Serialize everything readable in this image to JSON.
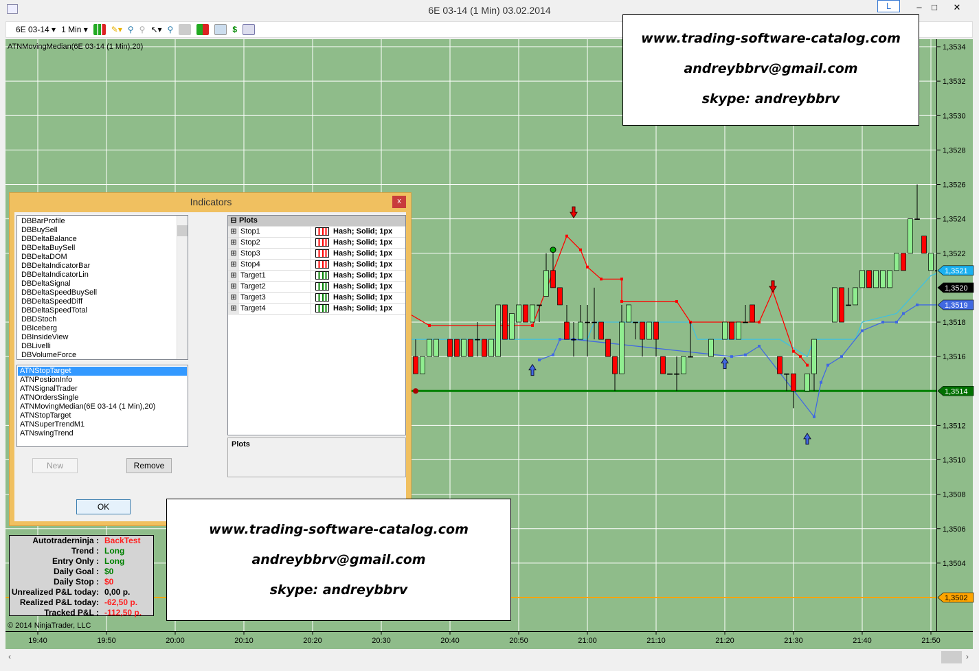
{
  "window": {
    "title": "6E 03-14 (1 Min)  03.02.2014",
    "badge": "L",
    "minimize": "‒",
    "maximize": "□",
    "close": "✕",
    "icon": "chart-icon"
  },
  "toolbar": {
    "instrument": "6E 03-14",
    "interval": "1 Min",
    "icons": [
      "bar-style-icon",
      "pencil-icon",
      "zoom-in-icon",
      "zoom-out-icon",
      "cursor-icon",
      "magnify-icon",
      "data-box-icon",
      "indicators-icon",
      "strategies-icon",
      "dollar-icon",
      "properties-icon"
    ]
  },
  "chart": {
    "indicator_label": "ATNMovingMedian(6E 03-14 (1 Min),20)",
    "copyright": "© 2014 NinjaTrader, LLC",
    "colors": {
      "background": "#8fbc8a",
      "up": "#90ee90",
      "down": "#ff0000",
      "stop": "#ff0000",
      "median": "#40c0e0",
      "target": "#4169e1",
      "level": "#008000",
      "orange": "#ffa500"
    }
  },
  "chart_data": {
    "type": "candlestick",
    "y_ticks": [
      "1,3534",
      "1,3532",
      "1,3530",
      "1,3528",
      "1,3526",
      "1,3524",
      "1,3522",
      "1,3518",
      "1,3516",
      "1,3512",
      "1,3510",
      "1,3508",
      "1,3506",
      "1,3504"
    ],
    "ylim": [
      1.35005,
      1.35365
    ],
    "x_ticks": [
      "19:40",
      "19:50",
      "20:00",
      "20:10",
      "20:20",
      "20:30",
      "20:40",
      "20:50",
      "21:00",
      "21:10",
      "21:20",
      "21:30",
      "21:40",
      "21:50"
    ],
    "candles": [
      [
        "20:35",
        1.3516,
        1.3517,
        1.3515,
        1.3515
      ],
      [
        "20:36",
        1.3515,
        1.3516,
        1.3515,
        1.3516
      ],
      [
        "20:37",
        1.3516,
        1.3517,
        1.3516,
        1.3517
      ],
      [
        "20:38",
        1.3516,
        1.3517,
        1.3516,
        1.3517
      ],
      [
        "20:40",
        1.3517,
        1.3517,
        1.3516,
        1.3516
      ],
      [
        "20:41",
        1.3517,
        1.3517,
        1.3516,
        1.3516
      ],
      [
        "20:42",
        1.3516,
        1.3517,
        1.3516,
        1.3517
      ],
      [
        "20:43",
        1.3517,
        1.3517,
        1.3516,
        1.3516
      ],
      [
        "20:44",
        1.3517,
        1.3518,
        1.3516,
        1.3517
      ],
      [
        "20:45",
        1.3517,
        1.3517,
        1.3516,
        1.3516
      ],
      [
        "20:46",
        1.3516,
        1.3517,
        1.3516,
        1.3517
      ],
      [
        "20:47",
        1.3516,
        1.3519,
        1.3516,
        1.3519
      ],
      [
        "20:48",
        1.3519,
        1.3519,
        1.3517,
        1.3517
      ],
      [
        "20:49",
        1.3517,
        1.35185,
        1.3517,
        1.35185
      ],
      [
        "20:50",
        1.3518,
        1.3519,
        1.3518,
        1.3519
      ],
      [
        "20:51",
        1.3519,
        1.3519,
        1.3518,
        1.3518
      ],
      [
        "20:52",
        1.3518,
        1.3519,
        1.3518,
        1.3519
      ],
      [
        "20:53",
        1.3519,
        1.3519,
        1.3518,
        1.3519
      ],
      [
        "20:54",
        1.35195,
        1.3522,
        1.35195,
        1.3521
      ],
      [
        "20:55",
        1.3521,
        1.3522,
        1.352,
        1.352
      ],
      [
        "20:56",
        1.352,
        1.352,
        1.3519,
        1.3519
      ],
      [
        "20:57",
        1.3518,
        1.3519,
        1.3517,
        1.3517
      ],
      [
        "20:58",
        1.3517,
        1.3518,
        1.3516,
        1.3517
      ],
      [
        "20:59",
        1.3517,
        1.3519,
        1.3517,
        1.3518
      ],
      [
        "21:00",
        1.3518,
        1.3519,
        1.3516,
        1.3518
      ],
      [
        "21:01",
        1.3518,
        1.352,
        1.3517,
        1.3518
      ],
      [
        "21:02",
        1.3518,
        1.3518,
        1.3517,
        1.3517
      ],
      [
        "21:03",
        1.3517,
        1.3517,
        1.3516,
        1.3516
      ],
      [
        "21:04",
        1.3516,
        1.3516,
        1.3514,
        1.3515
      ],
      [
        "21:05",
        1.3515,
        1.3519,
        1.3515,
        1.3518
      ],
      [
        "21:06",
        1.3518,
        1.3519,
        1.3518,
        1.3519
      ],
      [
        "21:07",
        1.3518,
        1.3518,
        1.3517,
        1.3518
      ],
      [
        "21:08",
        1.3518,
        1.3518,
        1.3516,
        1.3517
      ],
      [
        "21:09",
        1.3517,
        1.3518,
        1.3517,
        1.3518
      ],
      [
        "21:10",
        1.3518,
        1.3518,
        1.3516,
        1.3517
      ],
      [
        "21:11",
        1.3516,
        1.3516,
        1.3515,
        1.3515
      ],
      [
        "21:12",
        1.3515,
        1.3515,
        1.3515,
        1.3515
      ],
      [
        "21:13",
        1.3515,
        1.3516,
        1.3514,
        1.3515
      ],
      [
        "21:14",
        1.3515,
        1.3516,
        1.3515,
        1.3516
      ],
      [
        "21:15",
        1.3516,
        1.3518,
        1.3516,
        1.3516
      ],
      [
        "21:18",
        1.3516,
        1.3517,
        1.3516,
        1.3517
      ],
      [
        "21:20",
        1.3517,
        1.3518,
        1.3517,
        1.3518
      ],
      [
        "21:21",
        1.3518,
        1.3518,
        1.3517,
        1.3517
      ],
      [
        "21:22",
        1.3517,
        1.3518,
        1.3517,
        1.3518
      ],
      [
        "21:23",
        1.3518,
        1.3519,
        1.3518,
        1.3518
      ],
      [
        "21:24",
        1.3519,
        1.3519,
        1.3518,
        1.3518
      ],
      [
        "21:28",
        1.3516,
        1.3516,
        1.3515,
        1.3515
      ],
      [
        "21:29",
        1.3515,
        1.3515,
        1.3514,
        1.3515
      ],
      [
        "21:30",
        1.3515,
        1.3515,
        1.3513,
        1.3514
      ],
      [
        "21:32",
        1.3514,
        1.3515,
        1.3514,
        1.3515
      ],
      [
        "21:33",
        1.3515,
        1.3517,
        1.3514,
        1.3517
      ],
      [
        "21:36",
        1.3518,
        1.352,
        1.3518,
        1.352
      ],
      [
        "21:37",
        1.352,
        1.352,
        1.3518,
        1.3518
      ],
      [
        "21:38",
        1.3519,
        1.352,
        1.3519,
        1.3519
      ],
      [
        "21:39",
        1.3519,
        1.352,
        1.3519,
        1.352
      ],
      [
        "21:40",
        1.352,
        1.3521,
        1.352,
        1.3521
      ],
      [
        "21:41",
        1.3521,
        1.3521,
        1.352,
        1.352
      ],
      [
        "21:42",
        1.352,
        1.3521,
        1.352,
        1.3521
      ],
      [
        "21:43",
        1.352,
        1.3521,
        1.352,
        1.3521
      ],
      [
        "21:44",
        1.352,
        1.3521,
        1.352,
        1.3521
      ],
      [
        "21:45",
        1.3521,
        1.3522,
        1.3521,
        1.3522
      ],
      [
        "21:46",
        1.3522,
        1.3522,
        1.3521,
        1.3521
      ],
      [
        "21:47",
        1.3522,
        1.3524,
        1.3522,
        1.3524
      ],
      [
        "21:48",
        1.3524,
        1.3526,
        1.3524,
        1.3524
      ],
      [
        "21:49",
        1.3523,
        1.3523,
        1.3522,
        1.3522
      ],
      [
        "21:50",
        1.3521,
        1.3522,
        1.3521,
        1.3522
      ],
      [
        "21:51",
        1.3521,
        1.3522,
        1.3521,
        1.3521
      ],
      [
        "21:52",
        1.3521,
        1.3522,
        1.3519,
        1.352
      ]
    ],
    "stop_line": [
      [
        "20:34",
        1.35185
      ],
      [
        "20:37",
        1.35178
      ],
      [
        "20:52",
        1.35178
      ],
      [
        "20:57",
        1.3523
      ],
      [
        "20:59",
        1.35222
      ],
      [
        "21:00",
        1.35212
      ],
      [
        "21:02",
        1.35205
      ],
      [
        "21:05",
        1.35205
      ],
      [
        "21:05",
        1.35192
      ],
      [
        "21:13",
        1.35192
      ],
      [
        "21:15",
        1.3518
      ],
      [
        "21:25",
        1.3518
      ],
      [
        "21:27",
        1.35198
      ],
      [
        "21:30",
        1.35163
      ],
      [
        "21:31",
        1.3516
      ],
      [
        "21:32",
        1.35155
      ]
    ],
    "median_line": [
      [
        "20:34",
        1.3517
      ],
      [
        "21:00",
        1.3517
      ],
      [
        "21:01",
        1.3518
      ],
      [
        "21:15",
        1.3518
      ],
      [
        "21:16",
        1.3517
      ],
      [
        "21:28",
        1.3517
      ],
      [
        "21:32",
        1.3516
      ],
      [
        "21:33",
        1.3517
      ],
      [
        "21:39",
        1.3517
      ],
      [
        "21:40",
        1.3518
      ],
      [
        "21:45",
        1.35185
      ],
      [
        "21:50",
        1.35207
      ],
      [
        "21:52",
        1.3521
      ]
    ],
    "target_line": [
      [
        "20:53",
        1.35158
      ],
      [
        "20:55",
        1.35161
      ],
      [
        "20:56",
        1.3517
      ],
      [
        "20:58",
        1.3517
      ],
      [
        "21:21",
        1.3516
      ],
      [
        "21:23",
        1.35161
      ],
      [
        "21:25",
        1.35166
      ],
      [
        "21:33",
        1.35125
      ],
      [
        "21:34",
        1.35145
      ],
      [
        "21:35",
        1.35155
      ],
      [
        "21:37",
        1.3516
      ],
      [
        "21:40",
        1.35175
      ],
      [
        "21:43",
        1.3518
      ],
      [
        "21:45",
        1.3518
      ],
      [
        "21:46",
        1.35185
      ],
      [
        "21:48",
        1.3519
      ],
      [
        "21:52",
        1.3519
      ]
    ],
    "down_arrows": [
      [
        "20:58",
        1.35243
      ],
      [
        "21:27",
        1.352
      ]
    ],
    "up_arrows": [
      [
        "20:52",
        1.35153
      ],
      [
        "21:20",
        1.35157
      ],
      [
        "21:32",
        1.35113
      ]
    ],
    "level_line": 1.3514,
    "orange_line": 1.3502,
    "price_markers": [
      {
        "label": "1,3521",
        "value": 1.3521,
        "color": "#1ab0f0"
      },
      {
        "label": "1,3520",
        "value": 1.352,
        "color": "#000000"
      },
      {
        "label": "1,3519",
        "value": 1.3519,
        "color": "#4169e1"
      },
      {
        "label": "1,3514",
        "value": 1.3514,
        "color": "#007000"
      },
      {
        "label": "1,3502",
        "value": 1.3502,
        "color": "#ffa500"
      }
    ]
  },
  "stats": [
    {
      "label": "Autotraderninja :",
      "value": "BackTest",
      "color": "#ff2020"
    },
    {
      "label": "Trend :",
      "value": "Long",
      "color": "#008000"
    },
    {
      "label": "Entry Only :",
      "value": "Long",
      "color": "#008000"
    },
    {
      "label": "Daily Goal :",
      "value": "$0",
      "color": "#008000"
    },
    {
      "label": "Daily Stop :",
      "value": "$0",
      "color": "#ff2020"
    },
    {
      "label": "Unrealized P&L today:",
      "value": "0,00 p.",
      "color": "#000000"
    },
    {
      "label": "Realized P&L today:",
      "value": "-62,50 p.",
      "color": "#ff2020"
    },
    {
      "label": "Tracked P&L :",
      "value": "-112,50 p.",
      "color": "#ff2020"
    }
  ],
  "watermark": {
    "site": "www.trading-software-catalog.com",
    "email": "andreybbrv@gmail.com",
    "skype": "skype: andreybbrv"
  },
  "dialog": {
    "title": "Indicators",
    "close": "x",
    "available": [
      "DBBarProfile",
      "DBBuySell",
      "DBDeltaBalance",
      "DBDeltaBuySell",
      "DBDeltaDOM",
      "DBDeltaIndicatorBar",
      "DBDeltaIndicatorLin",
      "DBDeltaSignal",
      "DBDeltaSpeedBuySell",
      "DBDeltaSpeedDiff",
      "DBDeltaSpeedTotal",
      "DBDStoch",
      "DBIceberg",
      "DBInsideView",
      "DBLivelli",
      "DBVolumeForce"
    ],
    "applied": [
      "ATNStopTarget",
      "ATNPostionInfo",
      "ATNSignalTrader",
      "ATNOrdersSingle",
      "ATNMovingMedian(6E 03-14 (1 Min),20)",
      "ATNStopTarget",
      "ATNSuperTrendM1",
      "ATNswingTrend"
    ],
    "plots_header": "Plots",
    "plots": [
      {
        "name": "Stop1",
        "value": "Hash; Solid; 1px",
        "color": "#ff0000"
      },
      {
        "name": "Stop2",
        "value": "Hash; Solid; 1px",
        "color": "#ff0000"
      },
      {
        "name": "Stop3",
        "value": "Hash; Solid; 1px",
        "color": "#ff0000"
      },
      {
        "name": "Stop4",
        "value": "Hash; Solid; 1px",
        "color": "#ff0000"
      },
      {
        "name": "Target1",
        "value": "Hash; Solid; 1px",
        "color": "#008000"
      },
      {
        "name": "Target2",
        "value": "Hash; Solid; 1px",
        "color": "#008000"
      },
      {
        "name": "Target3",
        "value": "Hash; Solid; 1px",
        "color": "#008000"
      },
      {
        "name": "Target4",
        "value": "Hash; Solid; 1px",
        "color": "#008000"
      }
    ],
    "description_title": "Plots",
    "new": "New",
    "remove": "Remove",
    "ok": "OK"
  }
}
